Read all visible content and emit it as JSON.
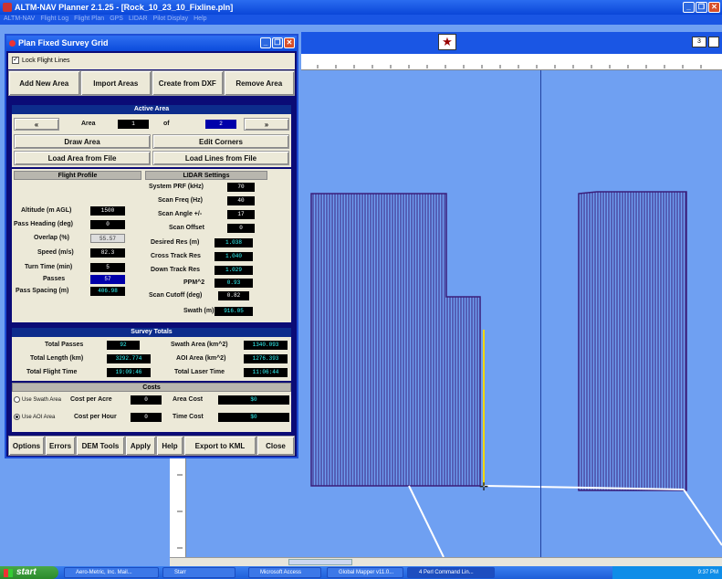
{
  "app": {
    "title": "ALTM-NAV Planner 2.1.25 - [Rock_10_23_10_Fixline.pln]",
    "menu": [
      "ALTM-NAV",
      "Flight Log",
      "Flight Plan",
      "GPS",
      "LIDAR",
      "Pilot Display",
      "Help"
    ]
  },
  "map": {
    "zoom_box": "3"
  },
  "dialog": {
    "title": "Plan Fixed Survey Grid",
    "lock_label": "Lock Flight Lines",
    "lock_checked": "✓",
    "buttons": [
      "Add New Area",
      "Import Areas",
      "Create from DXF",
      "Remove Area"
    ],
    "active_area": {
      "header": "Active Area",
      "prev": "«",
      "area_label": "Area",
      "area_value": "1",
      "of_label": "of",
      "total_value": "2",
      "next": "»",
      "draw_area": "Draw Area",
      "edit_corners": "Edit Corners",
      "load_area": "Load Area from File",
      "load_lines": "Load Lines from File"
    },
    "flight_profile": {
      "header": "Flight Profile",
      "altitude_label": "Altitude (m AGL)",
      "altitude": "1500",
      "heading_label": "Pass Heading (deg)",
      "heading": "0",
      "overlap_label": "Overlap (%)",
      "overlap": "55.57",
      "speed_label": "Speed (m/s)",
      "speed": "82.3",
      "turn_label": "Turn Time (min)",
      "turn": "5",
      "passes_label": "Passes",
      "passes": "57",
      "spacing_label": "Pass Spacing (m)",
      "spacing": "406.98"
    },
    "lidar": {
      "header": "LIDAR Settings",
      "prf_label": "System PRF (kHz)",
      "prf": "70",
      "scanfreq_label": "Scan Freq (Hz)",
      "scanfreq": "40",
      "scanangle_label": "Scan Angle +/-",
      "scanangle": "17",
      "scanoffset_label": "Scan Offset",
      "scanoffset": "0",
      "desired_label": "Desired Res (m)",
      "desired": "1.038",
      "cross_label": "Cross Track Res",
      "cross": "1.040",
      "down_label": "Down Track Res",
      "down": "1.029",
      "ppm_label": "PPM^2",
      "ppm": "0.93",
      "cutoff_label": "Scan Cutoff (deg)",
      "cutoff": "0.82",
      "swath_label": "Swath (m)",
      "swath": "916.05"
    },
    "totals": {
      "header": "Survey Totals",
      "total_passes_label": "Total Passes",
      "total_passes": "92",
      "swath_area_label": "Swath Area (km^2)",
      "swath_area": "1340.093",
      "total_length_label": "Total Length (km)",
      "total_length": "3292.774",
      "aoi_area_label": "AOI Area (km^2)",
      "aoi_area": "1276.393",
      "flight_time_label": "Total Flight Time",
      "flight_time": "19:09:46",
      "laser_time_label": "Total Laser Time",
      "laser_time": "11:06:44"
    },
    "costs": {
      "header": "Costs",
      "use_swath": "Use Swath Area",
      "use_aoi": "Use AOI Area",
      "cost_per_acre_label": "Cost per Acre",
      "cost_per_acre": "0",
      "cost_per_hour_label": "Cost per Hour",
      "cost_per_hour": "0",
      "area_cost_label": "Area Cost",
      "area_cost": "$0",
      "time_cost_label": "Time Cost",
      "time_cost": "$0"
    },
    "bottom_buttons": [
      "Options",
      "Errors",
      "DEM Tools",
      "Apply",
      "Help",
      "Export to KML",
      "Close"
    ]
  },
  "taskbar": {
    "start": "start",
    "tasks": [
      "Aero-Metric, Inc. Mail...",
      "Starr",
      "Microsoft Access",
      "Global Mapper v11.0...",
      "4 Perl Command Lin..."
    ],
    "clock": "9:37 PM"
  }
}
